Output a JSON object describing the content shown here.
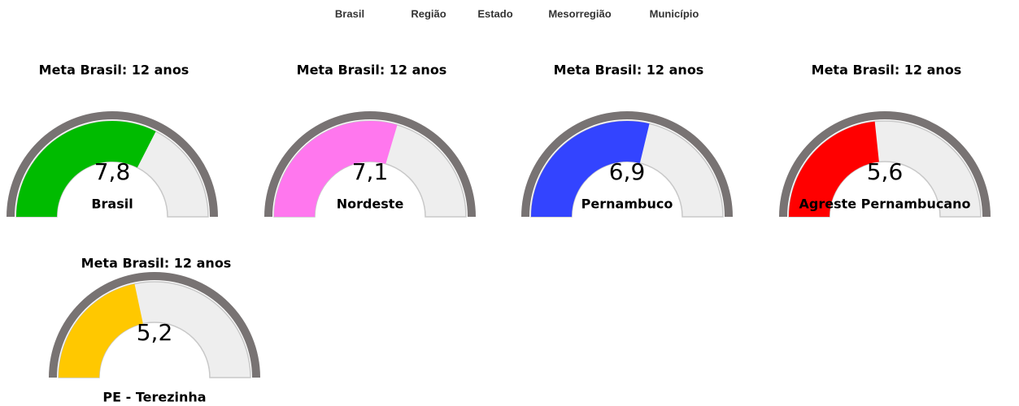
{
  "nav": [
    "Brasil",
    "Região",
    "Estado",
    "Mesorregião",
    "Município"
  ],
  "chart_data": [
    {
      "type": "gauge",
      "title": "Meta Brasil: 12 anos",
      "name": "Brasil",
      "value": 7.8,
      "value_labels": "7,8",
      "ylim": [
        0,
        12
      ],
      "color": "#00bb00"
    },
    {
      "type": "gauge",
      "title": "Meta Brasil: 12 anos",
      "name": "Nordeste",
      "value": 7.1,
      "value_labels": "7,1",
      "ylim": [
        0,
        12
      ],
      "color": "#ff77ee"
    },
    {
      "type": "gauge",
      "title": "Meta Brasil: 12 anos",
      "name": "Pernambuco",
      "value": 6.9,
      "value_labels": "6,9",
      "ylim": [
        0,
        12
      ],
      "color": "#3344ff"
    },
    {
      "type": "gauge",
      "title": "Meta Brasil: 12 anos",
      "name": "Agreste Pernambucano",
      "value": 5.6,
      "value_labels": "5,6",
      "ylim": [
        0,
        12
      ],
      "color": "#ff0000"
    },
    {
      "type": "gauge",
      "title": "Meta Brasil: 12 anos",
      "name": "PE - Terezinha",
      "value": 5.2,
      "value_labels": "5,2",
      "ylim": [
        0,
        12
      ],
      "color": "#ffc800"
    }
  ]
}
